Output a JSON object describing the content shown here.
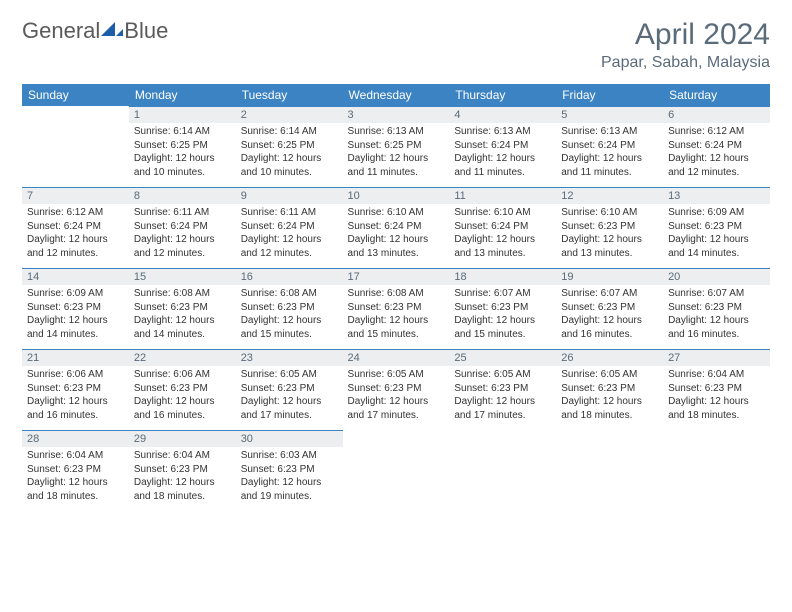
{
  "logo": {
    "text1": "General",
    "text2": "Blue"
  },
  "header": {
    "month": "April 2024",
    "location": "Papar, Sabah, Malaysia"
  },
  "colors": {
    "header_blue": "#3b83c3",
    "daynum_bg": "#eceeef",
    "text_gray": "#5a6b7a",
    "body_text": "#333333",
    "logo_blue": "#1e5ea8"
  },
  "daynames": [
    "Sunday",
    "Monday",
    "Tuesday",
    "Wednesday",
    "Thursday",
    "Friday",
    "Saturday"
  ],
  "weeks": [
    [
      {
        "n": "",
        "sr": "",
        "ss": "",
        "dl": ""
      },
      {
        "n": "1",
        "sr": "Sunrise: 6:14 AM",
        "ss": "Sunset: 6:25 PM",
        "dl": "Daylight: 12 hours and 10 minutes."
      },
      {
        "n": "2",
        "sr": "Sunrise: 6:14 AM",
        "ss": "Sunset: 6:25 PM",
        "dl": "Daylight: 12 hours and 10 minutes."
      },
      {
        "n": "3",
        "sr": "Sunrise: 6:13 AM",
        "ss": "Sunset: 6:25 PM",
        "dl": "Daylight: 12 hours and 11 minutes."
      },
      {
        "n": "4",
        "sr": "Sunrise: 6:13 AM",
        "ss": "Sunset: 6:24 PM",
        "dl": "Daylight: 12 hours and 11 minutes."
      },
      {
        "n": "5",
        "sr": "Sunrise: 6:13 AM",
        "ss": "Sunset: 6:24 PM",
        "dl": "Daylight: 12 hours and 11 minutes."
      },
      {
        "n": "6",
        "sr": "Sunrise: 6:12 AM",
        "ss": "Sunset: 6:24 PM",
        "dl": "Daylight: 12 hours and 12 minutes."
      }
    ],
    [
      {
        "n": "7",
        "sr": "Sunrise: 6:12 AM",
        "ss": "Sunset: 6:24 PM",
        "dl": "Daylight: 12 hours and 12 minutes."
      },
      {
        "n": "8",
        "sr": "Sunrise: 6:11 AM",
        "ss": "Sunset: 6:24 PM",
        "dl": "Daylight: 12 hours and 12 minutes."
      },
      {
        "n": "9",
        "sr": "Sunrise: 6:11 AM",
        "ss": "Sunset: 6:24 PM",
        "dl": "Daylight: 12 hours and 12 minutes."
      },
      {
        "n": "10",
        "sr": "Sunrise: 6:10 AM",
        "ss": "Sunset: 6:24 PM",
        "dl": "Daylight: 12 hours and 13 minutes."
      },
      {
        "n": "11",
        "sr": "Sunrise: 6:10 AM",
        "ss": "Sunset: 6:24 PM",
        "dl": "Daylight: 12 hours and 13 minutes."
      },
      {
        "n": "12",
        "sr": "Sunrise: 6:10 AM",
        "ss": "Sunset: 6:23 PM",
        "dl": "Daylight: 12 hours and 13 minutes."
      },
      {
        "n": "13",
        "sr": "Sunrise: 6:09 AM",
        "ss": "Sunset: 6:23 PM",
        "dl": "Daylight: 12 hours and 14 minutes."
      }
    ],
    [
      {
        "n": "14",
        "sr": "Sunrise: 6:09 AM",
        "ss": "Sunset: 6:23 PM",
        "dl": "Daylight: 12 hours and 14 minutes."
      },
      {
        "n": "15",
        "sr": "Sunrise: 6:08 AM",
        "ss": "Sunset: 6:23 PM",
        "dl": "Daylight: 12 hours and 14 minutes."
      },
      {
        "n": "16",
        "sr": "Sunrise: 6:08 AM",
        "ss": "Sunset: 6:23 PM",
        "dl": "Daylight: 12 hours and 15 minutes."
      },
      {
        "n": "17",
        "sr": "Sunrise: 6:08 AM",
        "ss": "Sunset: 6:23 PM",
        "dl": "Daylight: 12 hours and 15 minutes."
      },
      {
        "n": "18",
        "sr": "Sunrise: 6:07 AM",
        "ss": "Sunset: 6:23 PM",
        "dl": "Daylight: 12 hours and 15 minutes."
      },
      {
        "n": "19",
        "sr": "Sunrise: 6:07 AM",
        "ss": "Sunset: 6:23 PM",
        "dl": "Daylight: 12 hours and 16 minutes."
      },
      {
        "n": "20",
        "sr": "Sunrise: 6:07 AM",
        "ss": "Sunset: 6:23 PM",
        "dl": "Daylight: 12 hours and 16 minutes."
      }
    ],
    [
      {
        "n": "21",
        "sr": "Sunrise: 6:06 AM",
        "ss": "Sunset: 6:23 PM",
        "dl": "Daylight: 12 hours and 16 minutes."
      },
      {
        "n": "22",
        "sr": "Sunrise: 6:06 AM",
        "ss": "Sunset: 6:23 PM",
        "dl": "Daylight: 12 hours and 16 minutes."
      },
      {
        "n": "23",
        "sr": "Sunrise: 6:05 AM",
        "ss": "Sunset: 6:23 PM",
        "dl": "Daylight: 12 hours and 17 minutes."
      },
      {
        "n": "24",
        "sr": "Sunrise: 6:05 AM",
        "ss": "Sunset: 6:23 PM",
        "dl": "Daylight: 12 hours and 17 minutes."
      },
      {
        "n": "25",
        "sr": "Sunrise: 6:05 AM",
        "ss": "Sunset: 6:23 PM",
        "dl": "Daylight: 12 hours and 17 minutes."
      },
      {
        "n": "26",
        "sr": "Sunrise: 6:05 AM",
        "ss": "Sunset: 6:23 PM",
        "dl": "Daylight: 12 hours and 18 minutes."
      },
      {
        "n": "27",
        "sr": "Sunrise: 6:04 AM",
        "ss": "Sunset: 6:23 PM",
        "dl": "Daylight: 12 hours and 18 minutes."
      }
    ],
    [
      {
        "n": "28",
        "sr": "Sunrise: 6:04 AM",
        "ss": "Sunset: 6:23 PM",
        "dl": "Daylight: 12 hours and 18 minutes."
      },
      {
        "n": "29",
        "sr": "Sunrise: 6:04 AM",
        "ss": "Sunset: 6:23 PM",
        "dl": "Daylight: 12 hours and 18 minutes."
      },
      {
        "n": "30",
        "sr": "Sunrise: 6:03 AM",
        "ss": "Sunset: 6:23 PM",
        "dl": "Daylight: 12 hours and 19 minutes."
      },
      {
        "n": "",
        "sr": "",
        "ss": "",
        "dl": ""
      },
      {
        "n": "",
        "sr": "",
        "ss": "",
        "dl": ""
      },
      {
        "n": "",
        "sr": "",
        "ss": "",
        "dl": ""
      },
      {
        "n": "",
        "sr": "",
        "ss": "",
        "dl": ""
      }
    ]
  ]
}
